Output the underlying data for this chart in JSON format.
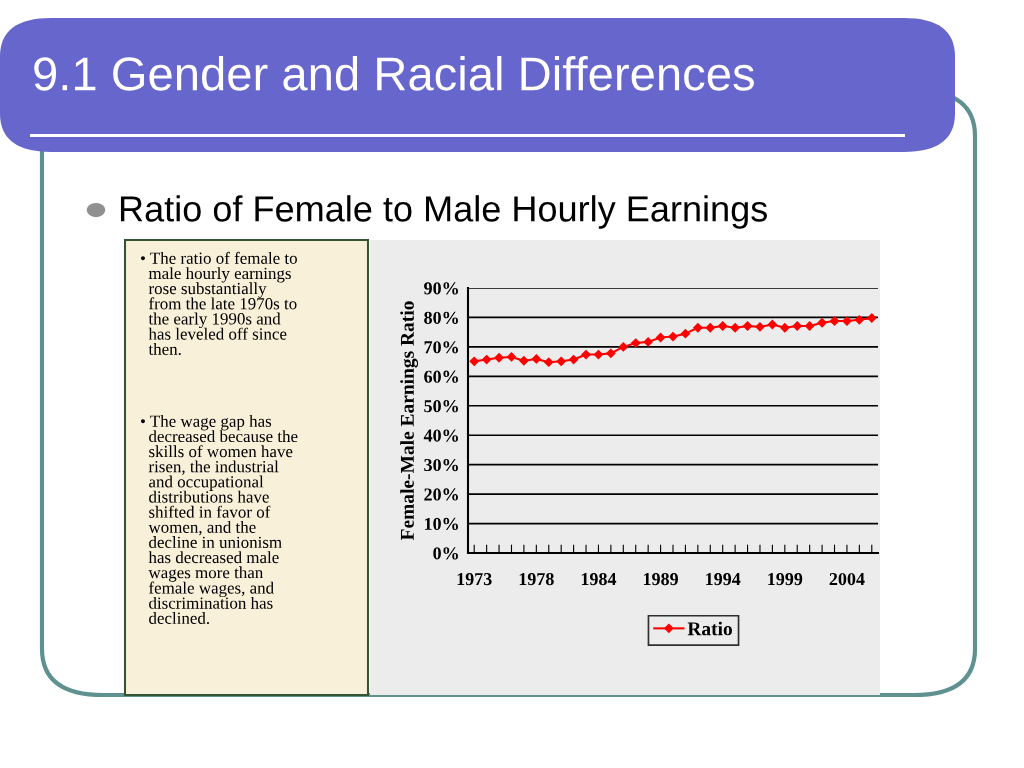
{
  "chart_data": {
    "type": "line",
    "title": "9.1 Gender and Racial Differences",
    "subtitle": "Ratio of Female to Male Hourly Earnings",
    "annotations": [
      "• The ratio of female to\n  male hourly earnings\n  rose substantially\n  from the late 1970s to\n  the early 1990s and\n  has leveled off since\n  then.",
      "• The wage gap has\n  decreased because the\n  skills of women have\n  risen, the industrial\n  and occupational\n  distributions have\n  shifted in favor of\n  women, and the\n  decline in unionism\n  has decreased male\n  wages more than\n  female wages, and\n  discrimination has\n  declined."
    ],
    "ylabel": "Female-Male Earnings Ratio",
    "categories": [
      "1973",
      null,
      null,
      null,
      null,
      "1978",
      null,
      null,
      null,
      null,
      "1984",
      null,
      null,
      null,
      null,
      "1989",
      null,
      null,
      null,
      null,
      "1994",
      null,
      null,
      null,
      null,
      "1999",
      null,
      null,
      null,
      null,
      "2004",
      null,
      null
    ],
    "series": [
      {
        "name": "Ratio",
        "color": "#ff0000",
        "values": [
          65.1,
          65.7,
          66.3,
          66.6,
          65.3,
          65.9,
          64.8,
          65.1,
          65.7,
          67.4,
          67.4,
          67.8,
          70.0,
          71.3,
          71.7,
          73.2,
          73.5,
          74.5,
          76.5,
          76.5,
          77.1,
          76.5,
          77.1,
          76.8,
          77.6,
          76.5,
          77.1,
          77.1,
          78.2,
          78.8,
          78.8,
          79.2,
          79.8
        ]
      }
    ],
    "ylim": [
      0,
      90
    ],
    "yticks": [
      {
        "value": 0,
        "label": "0%"
      },
      {
        "value": 10,
        "label": "10%"
      },
      {
        "value": 20,
        "label": "20%"
      },
      {
        "value": 30,
        "label": "30%"
      },
      {
        "value": 40,
        "label": "40%"
      },
      {
        "value": 50,
        "label": "50%"
      },
      {
        "value": 60,
        "label": "60%"
      },
      {
        "value": 70,
        "label": "70%"
      },
      {
        "value": 80,
        "label": "80%"
      },
      {
        "value": 90,
        "label": "90%"
      }
    ],
    "grid": "y",
    "legend": "bottom",
    "marker": "diamond",
    "line_style": "solid"
  }
}
